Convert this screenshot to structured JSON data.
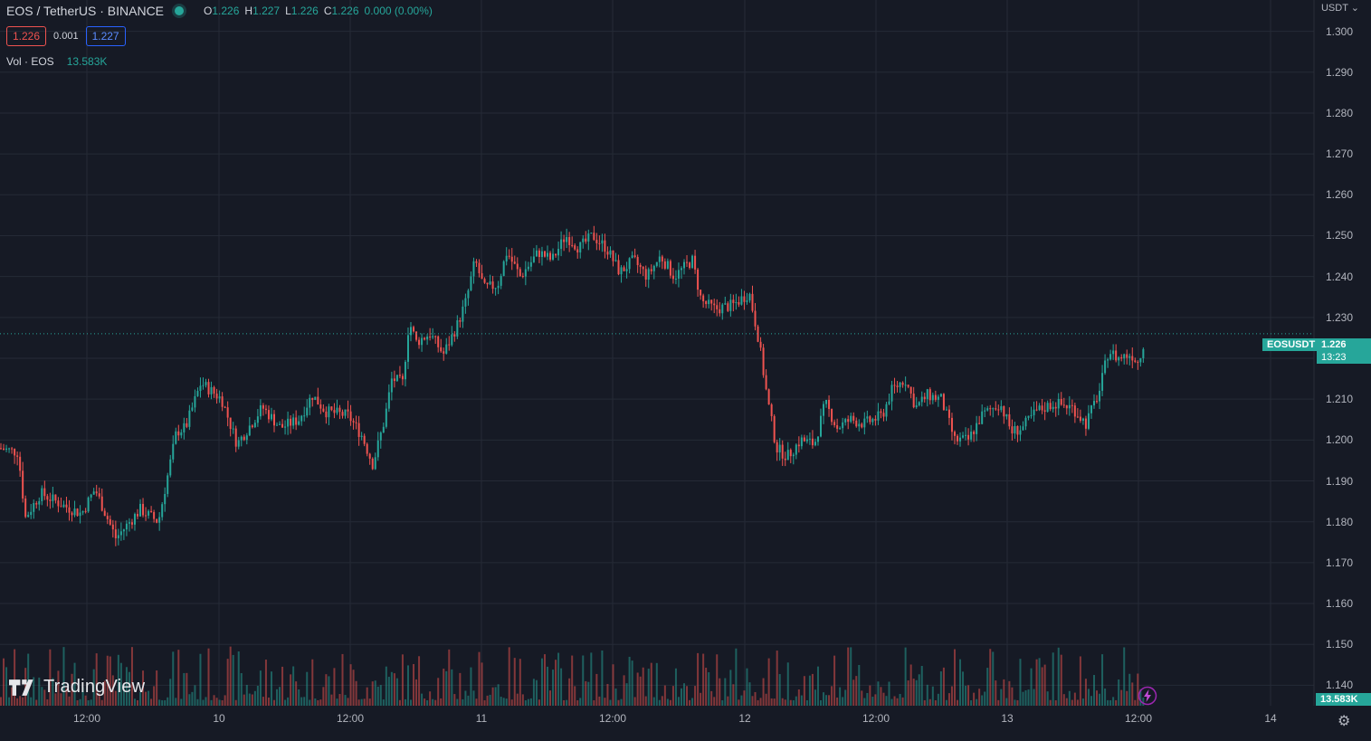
{
  "header": {
    "symbol": "EOS / TetherUS · BINANCE",
    "ohlc": {
      "o_key": "O",
      "o": "1.226",
      "h_key": "H",
      "h": "1.227",
      "l_key": "L",
      "l": "1.226",
      "c_key": "C",
      "c": "1.226",
      "change": "0.000 (0.00%)"
    },
    "bid": "1.226",
    "spread": "0.001",
    "ask": "1.227",
    "volume_label": "Vol · EOS",
    "volume_value": "13.583K"
  },
  "price_axis": {
    "currency": "USDT",
    "ticks": [
      "1.300",
      "1.290",
      "1.280",
      "1.270",
      "1.260",
      "1.250",
      "1.240",
      "1.230",
      "1.220",
      "1.210",
      "1.200",
      "1.190",
      "1.180",
      "1.170",
      "1.160",
      "1.150",
      "1.140"
    ]
  },
  "time_axis": {
    "ticks": [
      "12:00",
      "10",
      "12:00",
      "11",
      "12:00",
      "12",
      "12:00",
      "13",
      "12:00",
      "14"
    ]
  },
  "last_price": {
    "symbol": "EOSUSDT",
    "price": "1.226",
    "countdown": "13:23",
    "volume": "13.583K"
  },
  "branding": {
    "logo_text": "TradingView"
  },
  "colors": {
    "up": "#26a69a",
    "down": "#ef5350",
    "background": "#161a25",
    "grid": "#252a36"
  },
  "chart_data": {
    "type": "candlestick",
    "title": "EOS / TetherUS · BINANCE",
    "ylim": [
      1.135,
      1.305
    ],
    "x_ticks": [
      "12:00",
      "10",
      "12:00",
      "11",
      "12:00",
      "12",
      "12:00",
      "13",
      "12:00",
      "14"
    ],
    "series": [
      {
        "name": "EOSUSDT",
        "close_path": [
          {
            "x": 0,
            "y": 1.198
          },
          {
            "x": 20,
            "y": 1.197
          },
          {
            "x": 28,
            "y": 1.181
          },
          {
            "x": 45,
            "y": 1.187
          },
          {
            "x": 70,
            "y": 1.184
          },
          {
            "x": 90,
            "y": 1.182
          },
          {
            "x": 105,
            "y": 1.188
          },
          {
            "x": 128,
            "y": 1.176
          },
          {
            "x": 155,
            "y": 1.183
          },
          {
            "x": 175,
            "y": 1.18
          },
          {
            "x": 195,
            "y": 1.202
          },
          {
            "x": 205,
            "y": 1.203
          },
          {
            "x": 222,
            "y": 1.214
          },
          {
            "x": 245,
            "y": 1.21
          },
          {
            "x": 262,
            "y": 1.199
          },
          {
            "x": 290,
            "y": 1.208
          },
          {
            "x": 310,
            "y": 1.203
          },
          {
            "x": 330,
            "y": 1.205
          },
          {
            "x": 345,
            "y": 1.211
          },
          {
            "x": 360,
            "y": 1.207
          },
          {
            "x": 385,
            "y": 1.206
          },
          {
            "x": 400,
            "y": 1.201
          },
          {
            "x": 412,
            "y": 1.194
          },
          {
            "x": 425,
            "y": 1.205
          },
          {
            "x": 433,
            "y": 1.215
          },
          {
            "x": 445,
            "y": 1.214
          },
          {
            "x": 452,
            "y": 1.229
          },
          {
            "x": 460,
            "y": 1.224
          },
          {
            "x": 475,
            "y": 1.226
          },
          {
            "x": 490,
            "y": 1.221
          },
          {
            "x": 505,
            "y": 1.228
          },
          {
            "x": 515,
            "y": 1.234
          },
          {
            "x": 525,
            "y": 1.244
          },
          {
            "x": 535,
            "y": 1.237
          },
          {
            "x": 550,
            "y": 1.238
          },
          {
            "x": 560,
            "y": 1.246
          },
          {
            "x": 575,
            "y": 1.24
          },
          {
            "x": 595,
            "y": 1.246
          },
          {
            "x": 610,
            "y": 1.244
          },
          {
            "x": 625,
            "y": 1.25
          },
          {
            "x": 640,
            "y": 1.247
          },
          {
            "x": 655,
            "y": 1.25
          },
          {
            "x": 670,
            "y": 1.247
          },
          {
            "x": 685,
            "y": 1.241
          },
          {
            "x": 700,
            "y": 1.244
          },
          {
            "x": 715,
            "y": 1.24
          },
          {
            "x": 730,
            "y": 1.245
          },
          {
            "x": 745,
            "y": 1.24
          },
          {
            "x": 765,
            "y": 1.244
          },
          {
            "x": 775,
            "y": 1.234
          },
          {
            "x": 790,
            "y": 1.232
          },
          {
            "x": 810,
            "y": 1.233
          },
          {
            "x": 828,
            "y": 1.236
          },
          {
            "x": 838,
            "y": 1.225
          },
          {
            "x": 848,
            "y": 1.21
          },
          {
            "x": 858,
            "y": 1.198
          },
          {
            "x": 870,
            "y": 1.196
          },
          {
            "x": 885,
            "y": 1.2
          },
          {
            "x": 900,
            "y": 1.199
          },
          {
            "x": 912,
            "y": 1.209
          },
          {
            "x": 925,
            "y": 1.203
          },
          {
            "x": 940,
            "y": 1.205
          },
          {
            "x": 955,
            "y": 1.204
          },
          {
            "x": 975,
            "y": 1.206
          },
          {
            "x": 985,
            "y": 1.212
          },
          {
            "x": 1000,
            "y": 1.215
          },
          {
            "x": 1012,
            "y": 1.208
          },
          {
            "x": 1025,
            "y": 1.211
          },
          {
            "x": 1040,
            "y": 1.21
          },
          {
            "x": 1055,
            "y": 1.2
          },
          {
            "x": 1070,
            "y": 1.2
          },
          {
            "x": 1085,
            "y": 1.206
          },
          {
            "x": 1105,
            "y": 1.209
          },
          {
            "x": 1118,
            "y": 1.202
          },
          {
            "x": 1130,
            "y": 1.203
          },
          {
            "x": 1145,
            "y": 1.207
          },
          {
            "x": 1165,
            "y": 1.209
          },
          {
            "x": 1185,
            "y": 1.208
          },
          {
            "x": 1200,
            "y": 1.204
          },
          {
            "x": 1215,
            "y": 1.212
          },
          {
            "x": 1225,
            "y": 1.222
          },
          {
            "x": 1235,
            "y": 1.22
          },
          {
            "x": 1250,
            "y": 1.221
          },
          {
            "x": 1258,
            "y": 1.219
          },
          {
            "x": 1266,
            "y": 1.226
          }
        ]
      }
    ]
  }
}
